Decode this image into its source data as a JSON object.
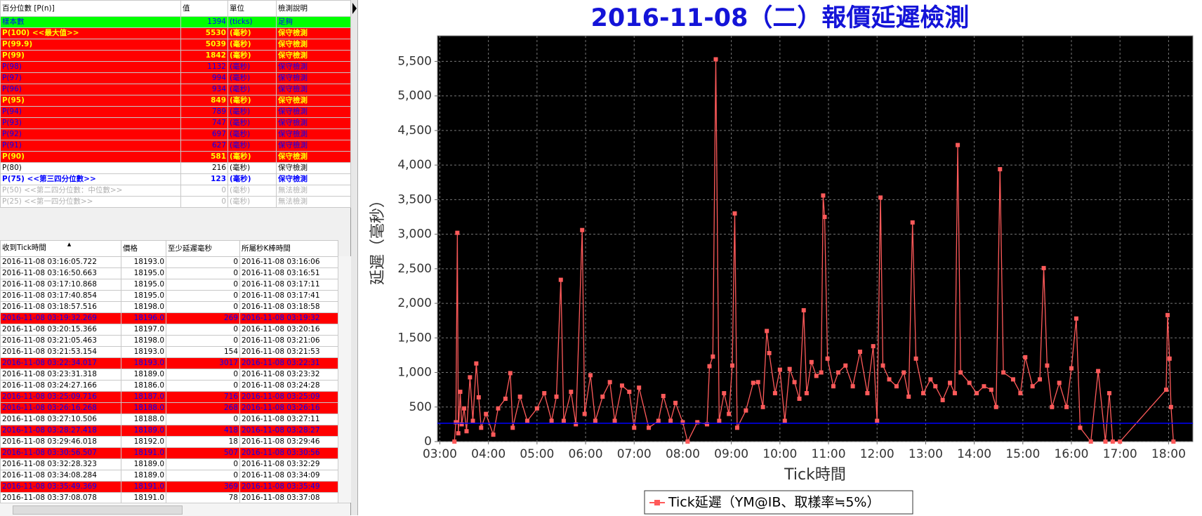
{
  "percentile_table": {
    "columns": [
      "百分位數 [P(n)]",
      "值",
      "單位",
      "檢測說明"
    ],
    "rows": [
      {
        "cells": [
          "樣本數",
          1394,
          "(ticks)",
          "足夠"
        ],
        "bg": "#00ff00",
        "fg": "#0000ff",
        "bold": false
      },
      {
        "cells": [
          "P(100)  <<最大值>>",
          5530,
          "(毫秒)",
          "保守檢測"
        ],
        "bg": "#ff0000",
        "fg": "#ffff00",
        "bold": true
      },
      {
        "cells": [
          "P(99.9)",
          5039,
          "(毫秒)",
          "保守檢測"
        ],
        "bg": "#ff0000",
        "fg": "#ffff00",
        "bold": true
      },
      {
        "cells": [
          "P(99)",
          1842,
          "(毫秒)",
          "保守檢測"
        ],
        "bg": "#ff0000",
        "fg": "#ffff00",
        "bold": true
      },
      {
        "cells": [
          "P(98)",
          1132,
          "(毫秒)",
          "保守檢測"
        ],
        "bg": "#ff0000",
        "fg": "#0000ff",
        "bold": false
      },
      {
        "cells": [
          "P(97)",
          994,
          "(毫秒)",
          "保守檢測"
        ],
        "bg": "#ff0000",
        "fg": "#0000ff",
        "bold": false
      },
      {
        "cells": [
          "P(96)",
          934,
          "(毫秒)",
          "保守檢測"
        ],
        "bg": "#ff0000",
        "fg": "#0000ff",
        "bold": false
      },
      {
        "cells": [
          "P(95)",
          849,
          "(毫秒)",
          "保守檢測"
        ],
        "bg": "#ff0000",
        "fg": "#ffff00",
        "bold": true
      },
      {
        "cells": [
          "P(94)",
          789,
          "(毫秒)",
          "保守檢測"
        ],
        "bg": "#ff0000",
        "fg": "#0000ff",
        "bold": false
      },
      {
        "cells": [
          "P(93)",
          747,
          "(毫秒)",
          "保守檢測"
        ],
        "bg": "#ff0000",
        "fg": "#0000ff",
        "bold": false
      },
      {
        "cells": [
          "P(92)",
          697,
          "(毫秒)",
          "保守檢測"
        ],
        "bg": "#ff0000",
        "fg": "#0000ff",
        "bold": false
      },
      {
        "cells": [
          "P(91)",
          627,
          "(毫秒)",
          "保守檢測"
        ],
        "bg": "#ff0000",
        "fg": "#0000ff",
        "bold": false
      },
      {
        "cells": [
          "P(90)",
          581,
          "(毫秒)",
          "保守檢測"
        ],
        "bg": "#ff0000",
        "fg": "#ffff00",
        "bold": true
      },
      {
        "cells": [
          "P(80)",
          216,
          "(毫秒)",
          "保守檢測"
        ],
        "bg": "#ffffff",
        "fg": "#000000",
        "bold": false
      },
      {
        "cells": [
          "P(75)  <<第三四分位數>>",
          123,
          "(毫秒)",
          "保守檢測"
        ],
        "bg": "#ffffff",
        "fg": "#0000ff",
        "bold": true
      },
      {
        "cells": [
          "P(50)  <<第二四分位數：中位數>>",
          0,
          "(毫秒)",
          "無法檢測"
        ],
        "bg": "#ffffff",
        "fg": "#b0b0b0",
        "bold": false
      },
      {
        "cells": [
          "P(25)  <<第一四分位數>>",
          0,
          "(毫秒)",
          "無法檢測"
        ],
        "bg": "#ffffff",
        "fg": "#b0b0b0",
        "bold": false
      }
    ]
  },
  "tick_table": {
    "columns": [
      "收到Tick時間",
      "價格",
      "至少延遲毫秒",
      "所屬秒K棒時間"
    ],
    "rows": [
      {
        "cells": [
          "2016-11-08 03:16:05.722",
          "18193.0",
          0,
          "2016-11-08 03:16:06"
        ],
        "bg": "#ffffff",
        "fg": "#000000"
      },
      {
        "cells": [
          "2016-11-08 03:16:50.663",
          "18195.0",
          0,
          "2016-11-08 03:16:51"
        ],
        "bg": "#ffffff",
        "fg": "#000000"
      },
      {
        "cells": [
          "2016-11-08 03:17:10.868",
          "18195.0",
          0,
          "2016-11-08 03:17:11"
        ],
        "bg": "#ffffff",
        "fg": "#000000"
      },
      {
        "cells": [
          "2016-11-08 03:17:40.854",
          "18195.0",
          0,
          "2016-11-08 03:17:41"
        ],
        "bg": "#ffffff",
        "fg": "#000000"
      },
      {
        "cells": [
          "2016-11-08 03:18:57.516",
          "18198.0",
          0,
          "2016-11-08 03:18:58"
        ],
        "bg": "#ffffff",
        "fg": "#000000"
      },
      {
        "cells": [
          "2016-11-08 03:19:32.269",
          "18196.0",
          269,
          "2016-11-08 03:19:32"
        ],
        "bg": "#ff0000",
        "fg": "#0000ff"
      },
      {
        "cells": [
          "2016-11-08 03:20:15.366",
          "18197.0",
          0,
          "2016-11-08 03:20:16"
        ],
        "bg": "#ffffff",
        "fg": "#000000"
      },
      {
        "cells": [
          "2016-11-08 03:21:05.463",
          "18198.0",
          0,
          "2016-11-08 03:21:06"
        ],
        "bg": "#ffffff",
        "fg": "#000000"
      },
      {
        "cells": [
          "2016-11-08 03:21:53.154",
          "18193.0",
          154,
          "2016-11-08 03:21:53"
        ],
        "bg": "#ffffff",
        "fg": "#000000"
      },
      {
        "cells": [
          "2016-11-08 03:22:34.017",
          "18193.0",
          3017,
          "2016-11-08 03:22:31"
        ],
        "bg": "#ff0000",
        "fg": "#0000ff"
      },
      {
        "cells": [
          "2016-11-08 03:23:31.318",
          "18189.0",
          0,
          "2016-11-08 03:23:32"
        ],
        "bg": "#ffffff",
        "fg": "#000000"
      },
      {
        "cells": [
          "2016-11-08 03:24:27.166",
          "18186.0",
          0,
          "2016-11-08 03:24:28"
        ],
        "bg": "#ffffff",
        "fg": "#000000"
      },
      {
        "cells": [
          "2016-11-08 03:25:09.716",
          "18187.0",
          716,
          "2016-11-08 03:25:09"
        ],
        "bg": "#ff0000",
        "fg": "#0000ff"
      },
      {
        "cells": [
          "2016-11-08 03:26:16.268",
          "18188.0",
          268,
          "2016-11-08 03:26:16"
        ],
        "bg": "#ff0000",
        "fg": "#0000ff"
      },
      {
        "cells": [
          "2016-11-08 03:27:10.506",
          "18188.0",
          0,
          "2016-11-08 03:27:11"
        ],
        "bg": "#ffffff",
        "fg": "#000000"
      },
      {
        "cells": [
          "2016-11-08 03:28:27.418",
          "18189.0",
          418,
          "2016-11-08 03:28:27"
        ],
        "bg": "#ff0000",
        "fg": "#0000ff"
      },
      {
        "cells": [
          "2016-11-08 03:29:46.018",
          "18192.0",
          18,
          "2016-11-08 03:29:46"
        ],
        "bg": "#ffffff",
        "fg": "#000000"
      },
      {
        "cells": [
          "2016-11-08 03:30:56.507",
          "18191.0",
          507,
          "2016-11-08 03:30:56"
        ],
        "bg": "#ff0000",
        "fg": "#0000ff"
      },
      {
        "cells": [
          "2016-11-08 03:32:28.323",
          "18189.0",
          0,
          "2016-11-08 03:32:29"
        ],
        "bg": "#ffffff",
        "fg": "#000000"
      },
      {
        "cells": [
          "2016-11-08 03:34:08.284",
          "18189.0",
          0,
          "2016-11-08 03:34:09"
        ],
        "bg": "#ffffff",
        "fg": "#000000"
      },
      {
        "cells": [
          "2016-11-08 03:35:49.369",
          "18191.0",
          369,
          "2016-11-08 03:35:49"
        ],
        "bg": "#ff0000",
        "fg": "#0000ff"
      },
      {
        "cells": [
          "2016-11-08 03:37:08.078",
          "18191.0",
          78,
          "2016-11-08 03:37:08"
        ],
        "bg": "#ffffff",
        "fg": "#000000"
      }
    ]
  },
  "chart_data": {
    "type": "line",
    "title": "2016-11-08（二）報價延遲檢測",
    "x_label": "Tick時間",
    "y_label": "延遲（毫秒）",
    "xlim": [
      2.95,
      18.5
    ],
    "xticks": [
      {
        "value": 3,
        "label": "03:00"
      },
      {
        "value": 4,
        "label": "04:00"
      },
      {
        "value": 5,
        "label": "05:00"
      },
      {
        "value": 6,
        "label": "06:00"
      },
      {
        "value": 7,
        "label": "07:00"
      },
      {
        "value": 8,
        "label": "08:00"
      },
      {
        "value": 9,
        "label": "09:00"
      },
      {
        "value": 10,
        "label": "10:00"
      },
      {
        "value": 11,
        "label": "11:00"
      },
      {
        "value": 12,
        "label": "12:00"
      },
      {
        "value": 13,
        "label": "13:00"
      },
      {
        "value": 14,
        "label": "14:00"
      },
      {
        "value": 15,
        "label": "15:00"
      },
      {
        "value": 16,
        "label": "16:00"
      },
      {
        "value": 17,
        "label": "17:00"
      },
      {
        "value": 18,
        "label": "18:00"
      }
    ],
    "ylim": [
      0,
      5870
    ],
    "yticks": [
      0,
      500,
      {
        "value": 1000,
        "label": "1,000"
      },
      {
        "value": 1500,
        "label": "1,500"
      },
      {
        "value": 2000,
        "label": "2,000"
      },
      {
        "value": 2500,
        "label": "2,500"
      },
      {
        "value": 3000,
        "label": "3,000"
      },
      {
        "value": 3500,
        "label": "3,500"
      },
      {
        "value": 4000,
        "label": "4,000"
      },
      {
        "value": 4500,
        "label": "4,500"
      },
      {
        "value": 5000,
        "label": "5,000"
      },
      {
        "value": 5500,
        "label": "5,500"
      }
    ],
    "grid": true,
    "reference_line": {
      "value": 265,
      "color": "#0000ff"
    },
    "series": [
      {
        "name": "Tick延遲（YM@IB、取樣率≒5%）",
        "color": "#ff5a5a",
        "x": [
          3.3,
          3.33,
          3.36,
          3.38,
          3.42,
          3.45,
          3.5,
          3.55,
          3.62,
          3.68,
          3.75,
          3.8,
          3.85,
          3.95,
          4.1,
          4.2,
          4.35,
          4.45,
          4.5,
          4.65,
          4.8,
          5.0,
          5.15,
          5.3,
          5.4,
          5.49,
          5.55,
          5.7,
          5.8,
          5.93,
          5.98,
          6.1,
          6.2,
          6.35,
          6.5,
          6.6,
          6.75,
          6.9,
          7.0,
          7.1,
          7.3,
          7.5,
          7.6,
          7.75,
          7.85,
          8.0,
          8.1,
          8.3,
          8.5,
          8.55,
          8.62,
          8.68,
          8.75,
          8.85,
          8.95,
          9.02,
          9.07,
          9.12,
          9.3,
          9.45,
          9.55,
          9.65,
          9.73,
          9.78,
          9.9,
          10.0,
          10.1,
          10.2,
          10.3,
          10.4,
          10.49,
          10.55,
          10.65,
          10.75,
          10.85,
          10.89,
          10.92,
          10.98,
          11.1,
          11.2,
          11.35,
          11.5,
          11.65,
          11.8,
          11.92,
          12.0,
          12.07,
          12.12,
          12.25,
          12.4,
          12.55,
          12.65,
          12.73,
          12.8,
          12.95,
          13.1,
          13.2,
          13.35,
          13.5,
          13.6,
          13.66,
          13.72,
          13.9,
          14.05,
          14.2,
          14.35,
          14.45,
          14.53,
          14.6,
          14.8,
          14.95,
          15.05,
          15.2,
          15.35,
          15.43,
          15.5,
          15.6,
          15.75,
          15.9,
          16.0,
          16.1,
          16.18,
          16.4,
          16.55,
          16.7,
          16.78,
          16.85,
          17.0,
          17.95,
          17.98,
          18.02,
          18.05,
          18.1
        ],
        "values": [
          0,
          280,
          3020,
          120,
          720,
          250,
          480,
          150,
          930,
          300,
          1130,
          640,
          200,
          400,
          100,
          480,
          620,
          990,
          200,
          650,
          300,
          480,
          700,
          300,
          650,
          2340,
          300,
          720,
          250,
          3060,
          400,
          960,
          300,
          650,
          860,
          300,
          810,
          720,
          200,
          780,
          200,
          300,
          660,
          300,
          560,
          280,
          0,
          280,
          250,
          1090,
          1230,
          5530,
          300,
          700,
          400,
          1100,
          3300,
          200,
          450,
          850,
          860,
          500,
          1600,
          1280,
          700,
          1040,
          300,
          1050,
          860,
          620,
          1900,
          700,
          1150,
          950,
          1000,
          3560,
          3250,
          1200,
          800,
          1000,
          1100,
          800,
          1300,
          700,
          1380,
          300,
          3530,
          1100,
          900,
          800,
          1000,
          650,
          3170,
          1200,
          700,
          900,
          800,
          600,
          850,
          700,
          4290,
          1000,
          850,
          700,
          800,
          750,
          500,
          3940,
          1000,
          900,
          700,
          1220,
          800,
          900,
          2510,
          1100,
          500,
          850,
          500,
          1060,
          1780,
          200,
          0,
          1020,
          0,
          700,
          0,
          0,
          750,
          1830,
          1200,
          500,
          0
        ]
      }
    ]
  }
}
